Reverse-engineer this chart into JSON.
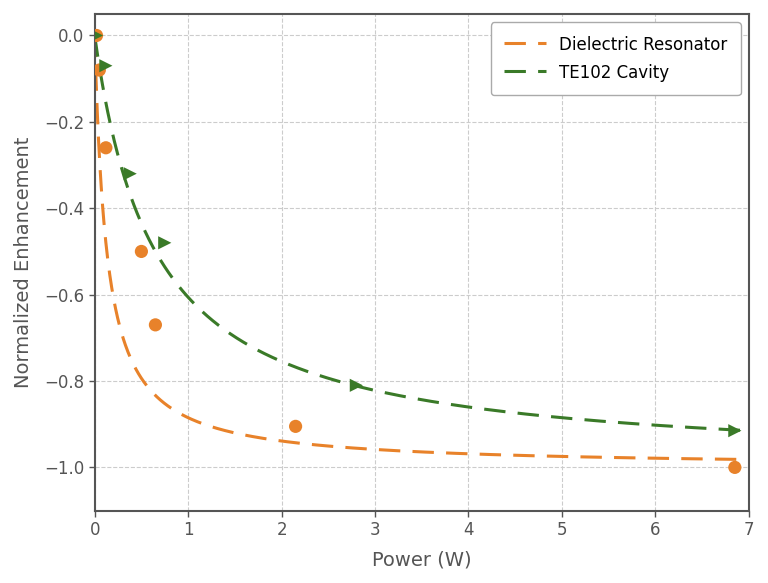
{
  "xlabel": "Power (W)",
  "ylabel": "Normalized Enhancement",
  "xlim": [
    0,
    7
  ],
  "ylim": [
    -1.1,
    0.05
  ],
  "yticks": [
    0.0,
    -0.2,
    -0.4,
    -0.6,
    -0.8,
    -1.0
  ],
  "xticks": [
    0,
    1,
    2,
    3,
    4,
    5,
    6,
    7
  ],
  "orange_scatter_x": [
    0.02,
    0.05,
    0.12,
    0.5,
    0.65,
    2.15,
    6.85
  ],
  "orange_scatter_y": [
    0.0,
    -0.08,
    -0.26,
    -0.5,
    -0.67,
    -0.905,
    -1.0
  ],
  "green_scatter_x": [
    0.02,
    0.12,
    0.38,
    0.75,
    2.8,
    6.85
  ],
  "green_scatter_y": [
    0.0,
    -0.07,
    -0.32,
    -0.48,
    -0.81,
    -0.915
  ],
  "orange_curve_color": "#E8822A",
  "green_curve_color": "#3A7A28",
  "orange_label": "Dielectric Resonator",
  "green_label": "TE102 Cavity",
  "orange_half": 0.13,
  "green_half": 0.65,
  "background_color": "#ffffff",
  "grid_color": "#cccccc",
  "spine_color": "#555555",
  "tick_color": "#555555",
  "label_color": "#555555",
  "xlabel_fontsize": 14,
  "ylabel_fontsize": 14,
  "tick_fontsize": 12,
  "legend_fontsize": 12,
  "linewidth": 2.2,
  "scatter_size": 90
}
